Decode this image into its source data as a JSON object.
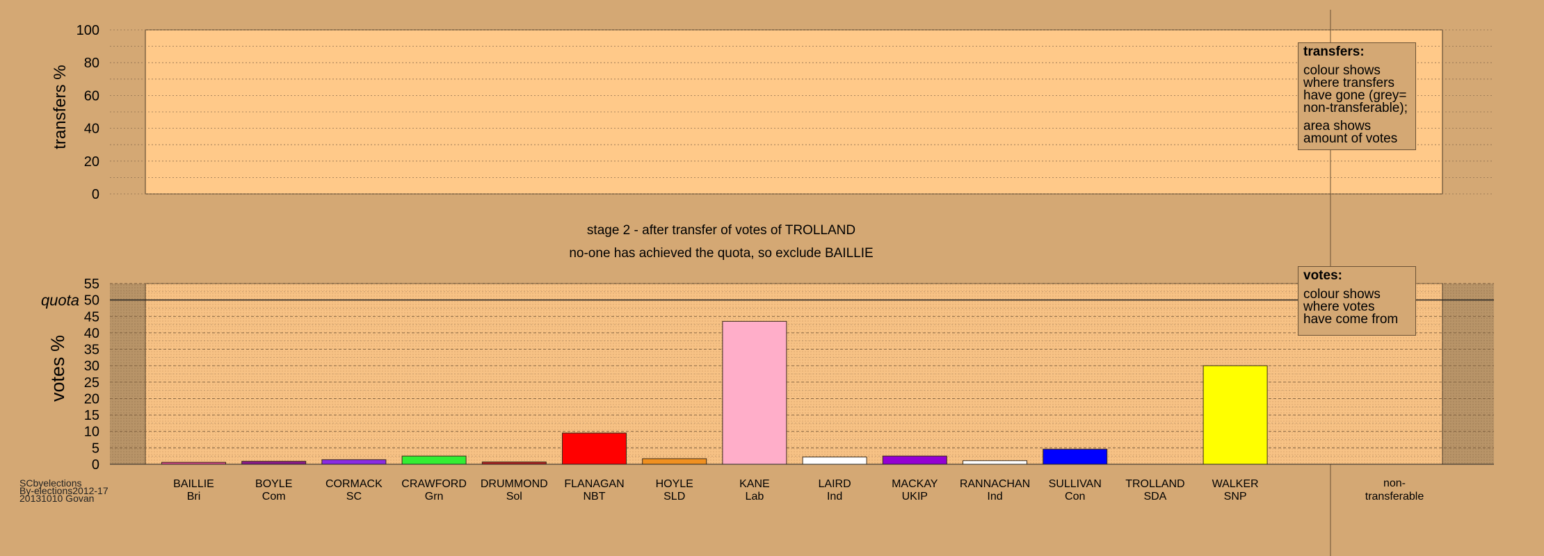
{
  "chart_data": [
    {
      "type": "bar",
      "ylabel": "transfers %",
      "ylim": [
        0,
        100
      ],
      "yticks": [
        0,
        20,
        40,
        60,
        80,
        100
      ],
      "grid": true,
      "series": [],
      "legend": {
        "title": "transfers:",
        "paragraphs": [
          [
            "colour shows",
            "where transfers",
            "have gone (grey=",
            "non-transferable);"
          ],
          [
            "area shows",
            "amount of votes"
          ]
        ],
        "placement": "top-right"
      }
    },
    {
      "type": "bar",
      "title": "stage 2 - after transfer of votes of TROLLAND",
      "subtitle": "no-one has achieved the quota, so exclude BAILLIE",
      "ylabel": "votes %",
      "ylim": [
        0,
        55
      ],
      "yticks": [
        0,
        5,
        10,
        15,
        20,
        25,
        30,
        35,
        40,
        45,
        50,
        55
      ],
      "quota": 50,
      "quota_label": "quota",
      "grid": true,
      "categories": [
        {
          "name": "BAILLIE",
          "party": "Bri",
          "value": 0.6,
          "color": "#d94a8a"
        },
        {
          "name": "BOYLE",
          "party": "Com",
          "value": 0.9,
          "color": "#8b1a8b"
        },
        {
          "name": "CORMACK",
          "party": "SC",
          "value": 1.4,
          "color": "#8a2be2"
        },
        {
          "name": "CRAWFORD",
          "party": "Grn",
          "value": 2.5,
          "color": "#33ee33"
        },
        {
          "name": "DRUMMOND",
          "party": "Sol",
          "value": 0.7,
          "color": "#b22222"
        },
        {
          "name": "FLANAGAN",
          "party": "NBT",
          "value": 9.5,
          "color": "#ff0000"
        },
        {
          "name": "HOYLE",
          "party": "SLD",
          "value": 1.7,
          "color": "#f09020"
        },
        {
          "name": "KANE",
          "party": "Lab",
          "value": 43.5,
          "color": "#ffaec9"
        },
        {
          "name": "LAIRD",
          "party": "Ind",
          "value": 2.2,
          "color": "#ffffff"
        },
        {
          "name": "MACKAY",
          "party": "UKIP",
          "value": 2.5,
          "color": "#9400d3"
        },
        {
          "name": "RANNACHAN",
          "party": "Ind",
          "value": 1.1,
          "color": "#ffffff"
        },
        {
          "name": "SULLIVAN",
          "party": "Con",
          "value": 4.6,
          "color": "#0000ff"
        },
        {
          "name": "TROLLAND",
          "party": "SDA",
          "value": 0,
          "color": "#cccccc"
        },
        {
          "name": "WALKER",
          "party": "SNP",
          "value": 30.0,
          "color": "#ffff00"
        }
      ],
      "nontransferable_label": [
        "non-",
        "transferable"
      ],
      "legend": {
        "title": "votes:",
        "paragraphs": [
          [
            "colour shows",
            "where votes",
            "have come from"
          ]
        ],
        "placement": "top-right"
      }
    }
  ],
  "credits": [
    "SCbyelections",
    "By-elections2012-17",
    "20131010 Govan"
  ],
  "colors": {
    "background": "#d4a874",
    "plot_fill": "#ffc989",
    "shade": "#b89468"
  }
}
